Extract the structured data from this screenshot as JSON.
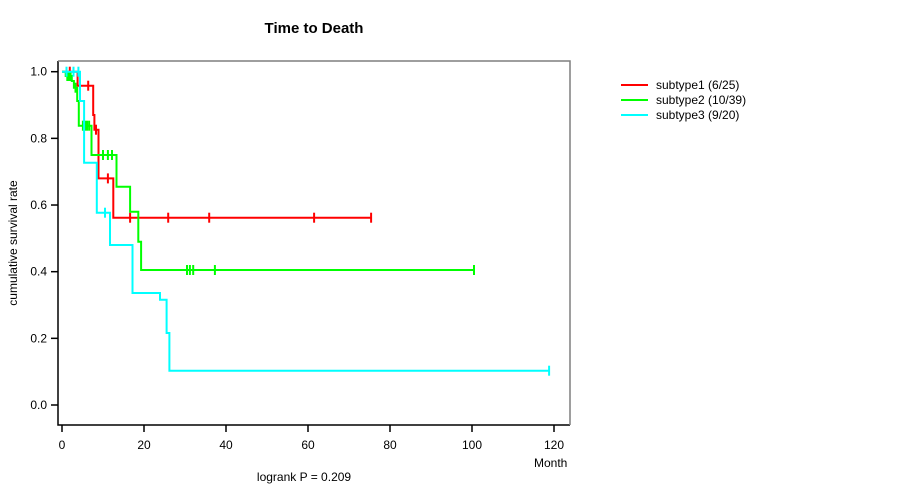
{
  "chart_data": {
    "type": "line",
    "subtype": "kaplan-meier-step",
    "title": "Time to Death",
    "xlabel": "Month",
    "ylabel": "cumulative survival rate",
    "caption": "logrank P = 0.209",
    "xlim": [
      0,
      120
    ],
    "ylim": [
      0.0,
      1.0
    ],
    "grid": "off",
    "legend_position": "right-outside",
    "xtick_values": [
      0,
      20,
      40,
      60,
      80,
      100,
      120
    ],
    "xtick_labels": [
      "0",
      "20",
      "40",
      "60",
      "80",
      "100",
      "120"
    ],
    "ytick_values": [
      0.0,
      0.2,
      0.4,
      0.6,
      0.8,
      1.0
    ],
    "ytick_labels": [
      "0.0",
      "0.2",
      "0.4",
      "0.6",
      "0.8",
      "1.0"
    ],
    "series": [
      {
        "name": "subtype1",
        "label": "subtype1 (6/25)",
        "color": "#ff0000",
        "events": 6,
        "n": 25,
        "steps": [
          [
            0,
            1.0
          ],
          [
            3.8,
            1.0
          ],
          [
            3.8,
            0.958
          ],
          [
            7.6,
            0.958
          ],
          [
            7.6,
            0.87
          ],
          [
            7.9,
            0.87
          ],
          [
            7.9,
            0.826
          ],
          [
            8.9,
            0.826
          ],
          [
            8.9,
            0.68
          ],
          [
            12.5,
            0.68
          ],
          [
            12.5,
            0.562
          ],
          [
            75.6,
            0.562
          ]
        ],
        "censors": [
          [
            1.9,
            1.0
          ],
          [
            6.4,
            0.958
          ],
          [
            8.3,
            0.826
          ],
          [
            11.2,
            0.68
          ],
          [
            16.6,
            0.562
          ],
          [
            25.9,
            0.562
          ],
          [
            35.9,
            0.562
          ],
          [
            61.5,
            0.562
          ],
          [
            75.4,
            0.562
          ]
        ]
      },
      {
        "name": "subtype2",
        "label": "subtype2 (10/39)",
        "color": "#00ff00",
        "events": 10,
        "n": 39,
        "steps": [
          [
            0,
            1.0
          ],
          [
            0.9,
            1.0
          ],
          [
            0.9,
            0.987
          ],
          [
            2.4,
            0.987
          ],
          [
            2.4,
            0.972
          ],
          [
            2.9,
            0.972
          ],
          [
            2.9,
            0.952
          ],
          [
            3.7,
            0.952
          ],
          [
            3.7,
            0.912
          ],
          [
            4.1,
            0.912
          ],
          [
            4.1,
            0.838
          ],
          [
            7.2,
            0.838
          ],
          [
            7.2,
            0.75
          ],
          [
            13.3,
            0.75
          ],
          [
            13.3,
            0.655
          ],
          [
            16.6,
            0.655
          ],
          [
            16.6,
            0.58
          ],
          [
            18.6,
            0.58
          ],
          [
            18.6,
            0.49
          ],
          [
            19.3,
            0.49
          ],
          [
            19.3,
            0.405
          ],
          [
            100.7,
            0.405
          ]
        ],
        "censors": [
          [
            1.3,
            0.987
          ],
          [
            1.7,
            0.987
          ],
          [
            2.1,
            0.987
          ],
          [
            3.3,
            0.952
          ],
          [
            5.1,
            0.838
          ],
          [
            5.6,
            0.838
          ],
          [
            6.1,
            0.838
          ],
          [
            6.6,
            0.838
          ],
          [
            10.0,
            0.75
          ],
          [
            11.2,
            0.75
          ],
          [
            12.2,
            0.75
          ],
          [
            30.5,
            0.405
          ],
          [
            31.2,
            0.405
          ],
          [
            32.0,
            0.405
          ],
          [
            37.3,
            0.405
          ],
          [
            100.5,
            0.405
          ]
        ]
      },
      {
        "name": "subtype3",
        "label": "subtype3 (9/20)",
        "color": "#00ffff",
        "events": 9,
        "n": 20,
        "steps": [
          [
            0,
            1.0
          ],
          [
            4.4,
            1.0
          ],
          [
            4.4,
            0.912
          ],
          [
            5.4,
            0.912
          ],
          [
            5.4,
            0.727
          ],
          [
            8.5,
            0.727
          ],
          [
            8.5,
            0.577
          ],
          [
            11.7,
            0.577
          ],
          [
            11.7,
            0.48
          ],
          [
            17.2,
            0.48
          ],
          [
            17.2,
            0.336
          ],
          [
            23.9,
            0.336
          ],
          [
            23.9,
            0.316
          ],
          [
            25.5,
            0.316
          ],
          [
            25.5,
            0.216
          ],
          [
            26.2,
            0.216
          ],
          [
            26.2,
            0.103
          ],
          [
            119,
            0.103
          ]
        ],
        "censors": [
          [
            1.1,
            1.0
          ],
          [
            2.8,
            1.0
          ],
          [
            4.0,
            1.0
          ],
          [
            10.5,
            0.577
          ],
          [
            118.8,
            0.103
          ]
        ]
      }
    ]
  }
}
